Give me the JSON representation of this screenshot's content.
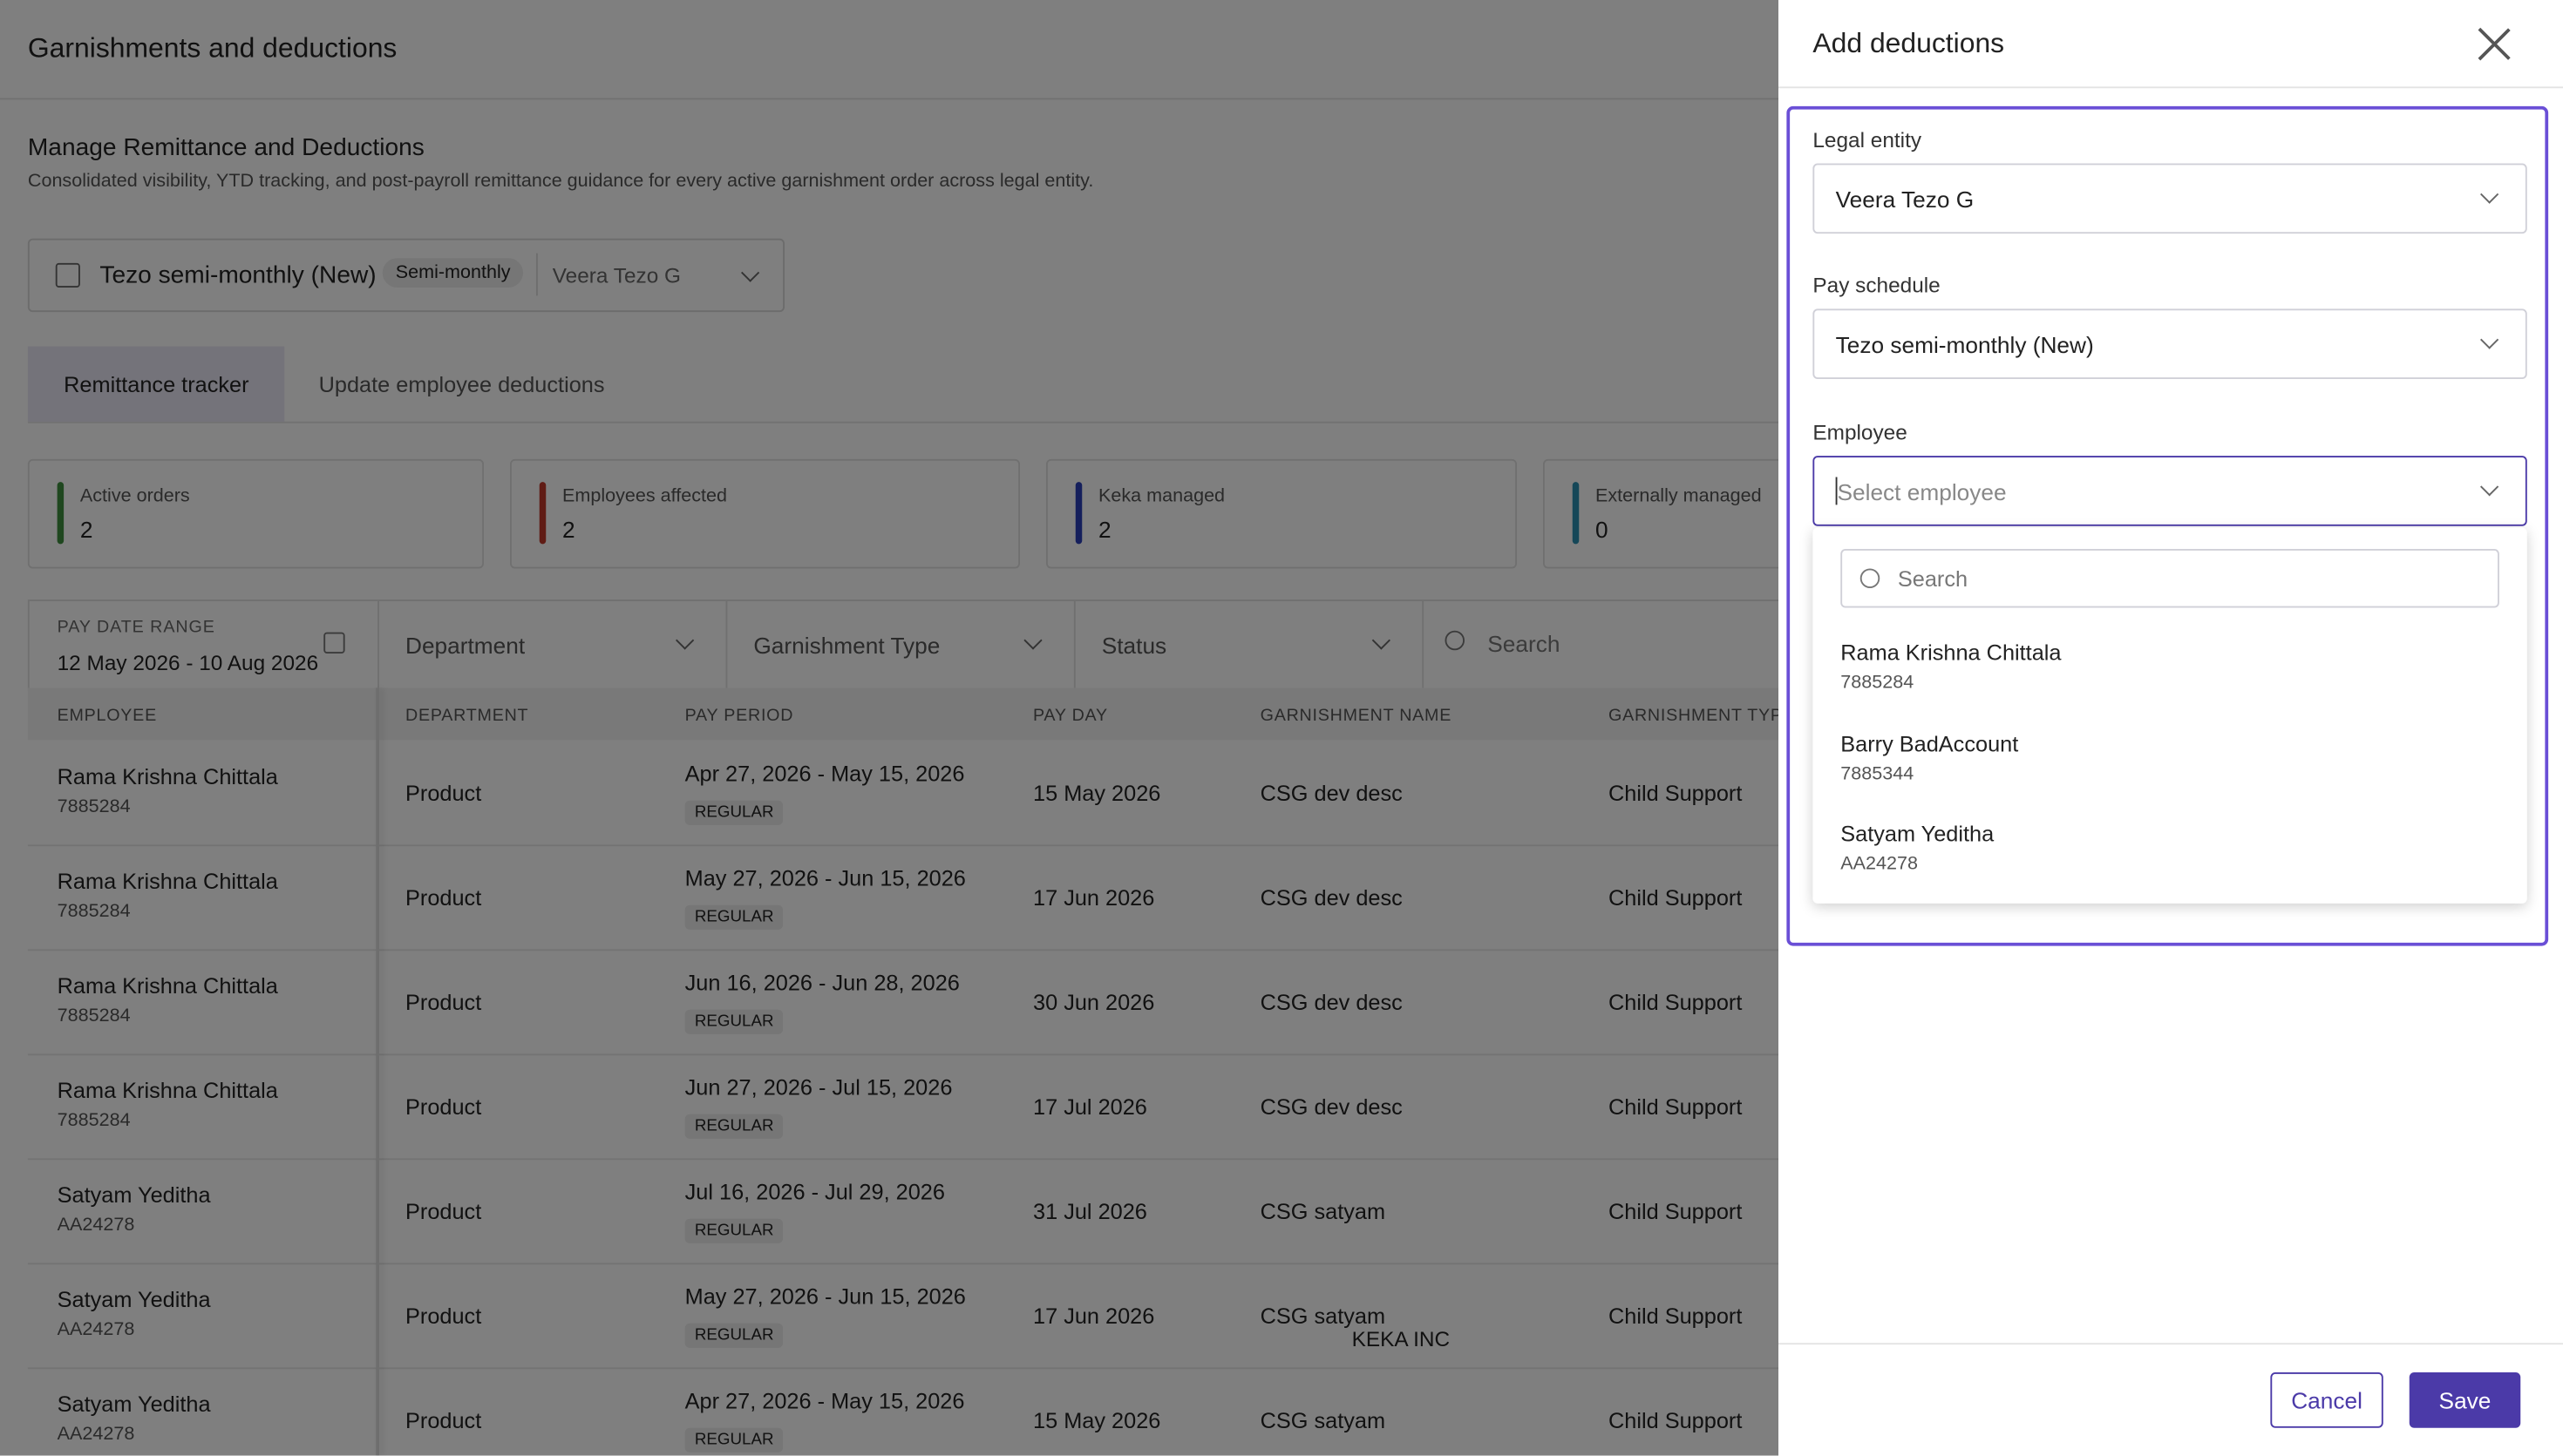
{
  "header": {
    "title": "Garnishments and deductions"
  },
  "section": {
    "title": "Manage Remittance and Deductions",
    "subtitle": "Consolidated visibility, YTD tracking, and post-payroll remittance guidance for every active garnishment order across legal entity."
  },
  "context": {
    "schedule": "Tezo semi-monthly (New)",
    "badge": "Semi-monthly",
    "entity": "Veera Tezo G"
  },
  "tabs": [
    "Remittance tracker",
    "Update employee deductions"
  ],
  "stats": [
    {
      "label": "Active orders",
      "value": 2,
      "color": "#3f8f3f"
    },
    {
      "label": "Employees affected",
      "value": 2,
      "color": "#c0392b"
    },
    {
      "label": "Keka managed",
      "value": 2,
      "color": "#2b3fb8"
    },
    {
      "label": "Externally managed",
      "value": 0,
      "color": "#2a8fb0"
    }
  ],
  "filters": {
    "date_label": "PAY DATE RANGE",
    "date_range": "12 May 2026 - 10 Aug 2026",
    "dropdowns": [
      "Department",
      "Garnishment Type",
      "Status"
    ],
    "search": "Search"
  },
  "table": {
    "columns": [
      "EMPLOYEE",
      "DEPARTMENT",
      "PAY PERIOD",
      "PAY DAY",
      "GARNISHMENT NAME",
      "GARNISHMENT TYPE"
    ],
    "rows": [
      {
        "name": "Rama Krishna Chittala",
        "id": "7885284",
        "department": "Product",
        "period": "Apr 27, 2026 - May 15, 2026",
        "tag": "REGULAR",
        "payday": "15 May 2026",
        "garnishment": "CSG dev desc",
        "type": "Child Support"
      },
      {
        "name": "Rama Krishna Chittala",
        "id": "7885284",
        "department": "Product",
        "period": "May 27, 2026 - Jun 15, 2026",
        "tag": "REGULAR",
        "payday": "17 Jun 2026",
        "garnishment": "CSG dev desc",
        "type": "Child Support"
      },
      {
        "name": "Rama Krishna Chittala",
        "id": "7885284",
        "department": "Product",
        "period": "Jun 16, 2026 - Jun 28, 2026",
        "tag": "REGULAR",
        "payday": "30 Jun 2026",
        "garnishment": "CSG dev desc",
        "type": "Child Support"
      },
      {
        "name": "Rama Krishna Chittala",
        "id": "7885284",
        "department": "Product",
        "period": "Jun 27, 2026 - Jul 15, 2026",
        "tag": "REGULAR",
        "payday": "17 Jul 2026",
        "garnishment": "CSG dev desc",
        "type": "Child Support"
      },
      {
        "name": "Satyam Yeditha",
        "id": "AA24278",
        "department": "Product",
        "period": "Jul 16, 2026 - Jul 29, 2026",
        "tag": "REGULAR",
        "payday": "31 Jul 2026",
        "garnishment": "CSG satyam",
        "type": "Child Support"
      },
      {
        "name": "Satyam Yeditha",
        "id": "AA24278",
        "department": "Product",
        "period": "May 27, 2026 - Jun 15, 2026",
        "tag": "REGULAR",
        "payday": "17 Jun 2026",
        "garnishment": "CSG satyam",
        "note": "KEKA INC",
        "type": "Child Support"
      },
      {
        "name": "Satyam Yeditha",
        "id": "AA24278",
        "department": "Product",
        "period": "Apr 27, 2026 - May 15, 2026",
        "tag": "REGULAR",
        "payday": "15 May 2026",
        "garnishment": "CSG satyam",
        "type": "Child Support"
      }
    ]
  },
  "panel": {
    "title": "Add deductions",
    "fields": [
      {
        "label": "Legal entity",
        "value": "Veera Tezo G"
      },
      {
        "label": "Pay schedule",
        "value": "Tezo semi-monthly (New)"
      },
      {
        "label": "Employee",
        "placeholder": "Select employee"
      }
    ],
    "search": "Search",
    "options": [
      {
        "name": "Rama Krishna Chittala",
        "id": "7885284"
      },
      {
        "name": "Barry BadAccount",
        "id": "7885344"
      },
      {
        "name": "Satyam Yeditha",
        "id": "AA24278"
      }
    ],
    "cancel": "Cancel",
    "save": "Save"
  }
}
